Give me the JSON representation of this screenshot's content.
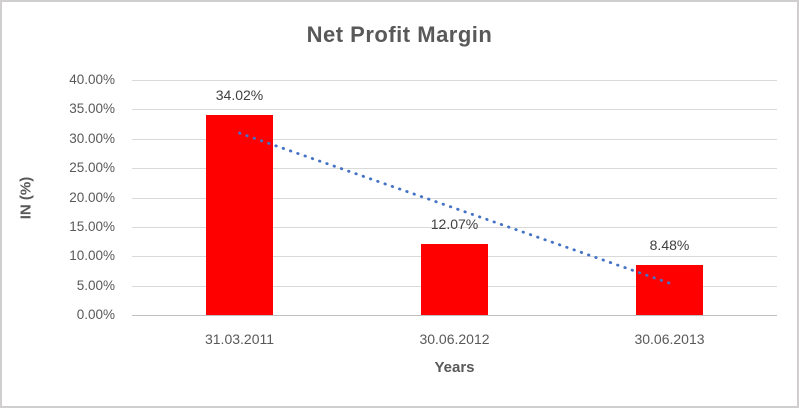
{
  "chart_data": {
    "type": "bar",
    "title": "Net Profit Margin",
    "xlabel": "Years",
    "ylabel": "IN (%)",
    "categories": [
      "31.03.2011",
      "30.06.2012",
      "30.06.2013"
    ],
    "values": [
      34.02,
      12.07,
      8.48
    ],
    "data_labels": [
      "34.02%",
      "12.07%",
      "8.48%"
    ],
    "ylim": [
      0,
      40
    ],
    "ytick_step": 5,
    "ytick_labels": [
      "40.00%",
      "35.00%",
      "30.00%",
      "25.00%",
      "20.00%",
      "15.00%",
      "10.00%",
      "5.00%",
      "0.00%"
    ],
    "grid": true,
    "legend": false,
    "colors": {
      "bar": "#ff0000",
      "trendline": "#4472c4",
      "gridline": "#d9d9d9",
      "axis_line": "#bfbfbf",
      "tick_text": "#595959",
      "label_text": "#404040"
    },
    "trendline": {
      "style": "dotted",
      "color": "#4472c4",
      "start_value": 30.96,
      "end_value": 5.42,
      "start_category_index": 0,
      "end_category_index": 2
    }
  }
}
